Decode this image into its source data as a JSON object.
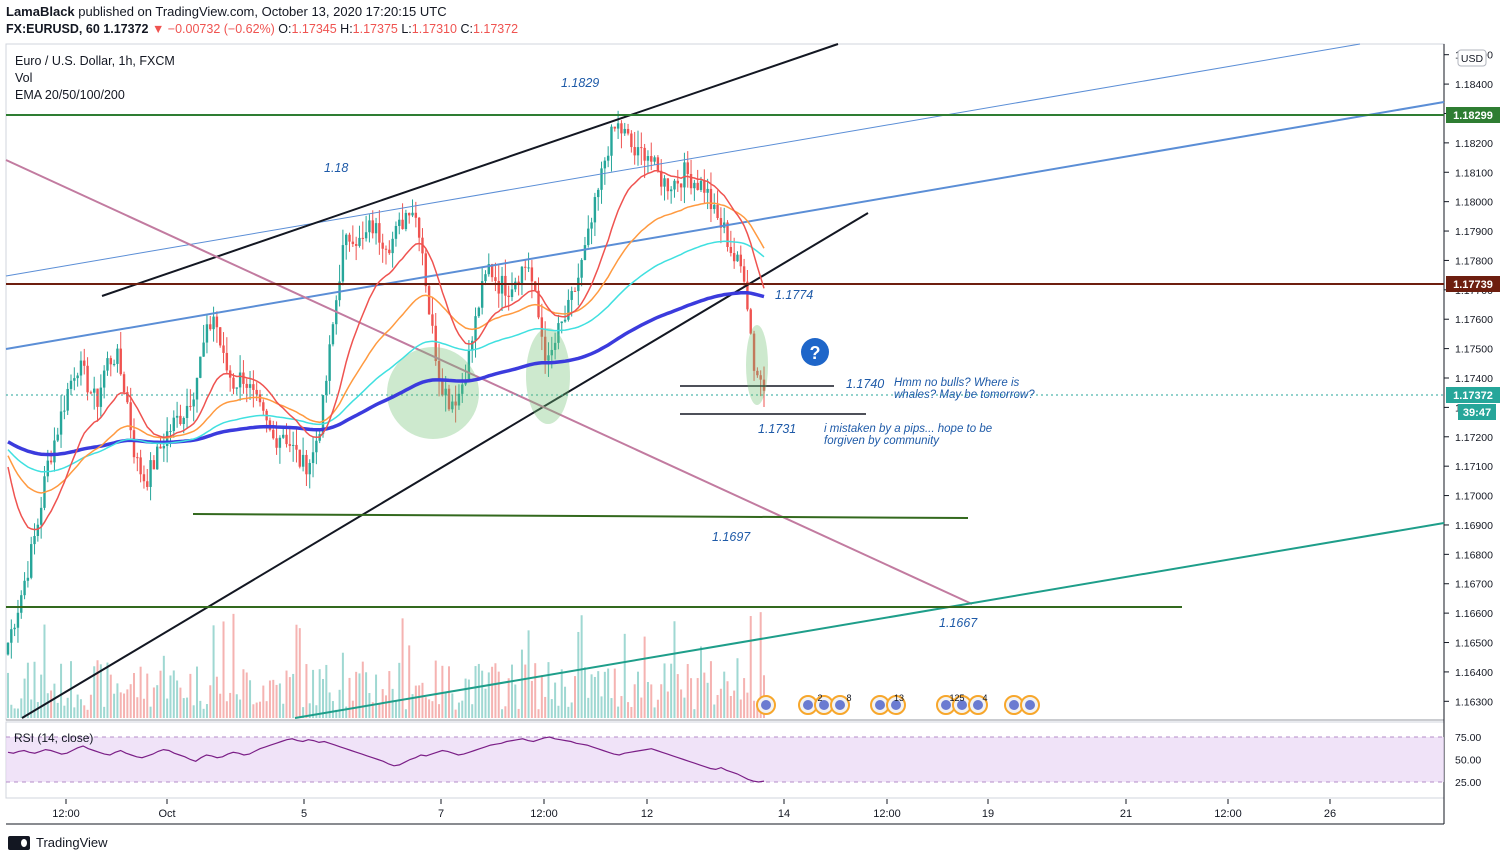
{
  "header": {
    "author": "LamaBlack",
    "published_text": "published on TradingView.com, October 13, 2020 17:20:15 UTC",
    "symbol": "FX:EURUSD, 60",
    "last": "1.17372",
    "change": "▼ −0.00732 (−0.62%)",
    "o_label": "O:",
    "o": "1.17345",
    "h_label": "H:",
    "h": "1.17375",
    "l_label": "L:",
    "l": "1.17310",
    "c_label": "C:",
    "c": "1.17372"
  },
  "legend": {
    "title": "Euro / U.S. Dollar, 1h, FXCM",
    "vol": "Vol",
    "ema": "EMA 20/50/100/200"
  },
  "rsi": {
    "label": "RSI (14, close)",
    "ticks": [
      "75.00",
      "50.00",
      "25.00"
    ],
    "values": [
      58,
      57,
      59,
      60,
      58,
      57,
      59,
      61,
      60,
      58,
      56,
      57,
      60,
      63,
      65,
      62,
      60,
      58,
      56,
      55,
      58,
      60,
      57,
      55,
      53,
      52,
      54,
      56,
      59,
      61,
      60,
      57,
      55,
      53,
      50,
      48,
      52,
      55,
      54,
      52,
      53,
      56,
      58,
      57,
      55,
      56,
      59,
      62,
      64,
      66,
      68,
      70,
      72,
      73,
      71,
      70,
      72,
      71,
      69,
      70,
      68,
      66,
      64,
      62,
      60,
      58,
      56,
      54,
      52,
      50,
      48,
      45,
      43,
      44,
      47,
      50,
      52,
      55,
      54,
      56,
      58,
      60,
      59,
      57,
      55,
      56,
      58,
      60,
      62,
      64,
      66,
      67,
      68,
      70,
      71,
      72,
      73,
      71,
      70,
      72,
      74,
      75,
      73,
      72,
      71,
      70,
      68,
      67,
      66,
      64,
      62,
      60,
      58,
      56,
      55,
      57,
      58,
      59,
      60,
      61,
      62,
      60,
      58,
      56,
      54,
      52,
      50,
      48,
      46,
      44,
      42,
      40,
      39,
      41,
      38,
      36,
      34,
      31,
      28,
      26,
      25,
      26
    ]
  },
  "price_axis": {
    "currency": "USD",
    "ticks": [
      "1.18500",
      "1.18400",
      "1.18300",
      "1.18200",
      "1.18100",
      "1.18000",
      "1.17900",
      "1.17800",
      "1.17700",
      "1.17600",
      "1.17500",
      "1.17400",
      "1.17300",
      "1.17200",
      "1.17100",
      "1.17000",
      "1.16900",
      "1.16800",
      "1.16700",
      "1.16600",
      "1.16500",
      "1.16400",
      "1.16300"
    ],
    "resistance_label": "1.18299",
    "level_label": "1.17739",
    "last_label": "1.17372",
    "countdown": "39:47"
  },
  "time_axis": {
    "ticks": [
      "12:00",
      "Oct",
      "5",
      "7",
      "12:00",
      "12",
      "14",
      "12:00",
      "19",
      "21",
      "12:00",
      "26"
    ]
  },
  "annotations": {
    "top": "1.1829",
    "mid": "1.18",
    "ema_level": "1.1774",
    "support_1740": "1.1740",
    "support_1731": "1.1731",
    "level_1697": "1.1697",
    "level_1667": "1.1667",
    "question": "?",
    "note1_line1": "Hmm no bulls? Where is",
    "note1_line2": "whales? May be tomorrow?",
    "note2_line1": "i mistaken by a pips... hope to be",
    "note2_line2": "forgiven by community"
  },
  "events": {
    "labels": [
      "2",
      "8",
      "13",
      "125",
      "4"
    ]
  },
  "footer": {
    "brand": "TradingView"
  },
  "colors": {
    "up": "#26a69a",
    "down": "#ef5350",
    "ema20": "#ef5350",
    "ema50": "#ff9a40",
    "ema100": "#40e0e0",
    "ema200": "#3b3bdd"
  },
  "chart_data": {
    "type": "candlestick",
    "symbol": "EURUSD",
    "timeframe": "1h",
    "ylim": [
      1.1625,
      1.1855
    ],
    "ohlc_last": {
      "open": 1.17345,
      "high": 1.17375,
      "low": 1.1731,
      "close": 1.17372
    },
    "close_path": [
      1.165,
      1.1662,
      1.1675,
      1.169,
      1.171,
      1.1722,
      1.1735,
      1.1745,
      1.1739,
      1.1731,
      1.1745,
      1.1748,
      1.1735,
      1.1712,
      1.1705,
      1.1712,
      1.172,
      1.1725,
      1.1729,
      1.1737,
      1.1752,
      1.1762,
      1.1745,
      1.1738,
      1.1741,
      1.1733,
      1.1726,
      1.1719,
      1.1722,
      1.1716,
      1.171,
      1.1713,
      1.1728,
      1.1755,
      1.1782,
      1.179,
      1.1785,
      1.1792,
      1.1788,
      1.1786,
      1.1792,
      1.18,
      1.179,
      1.176,
      1.174,
      1.1732,
      1.1735,
      1.1748,
      1.1766,
      1.1778,
      1.1772,
      1.1771,
      1.1776,
      1.1779,
      1.1761,
      1.1744,
      1.1755,
      1.1762,
      1.1773,
      1.1786,
      1.1801,
      1.1818,
      1.1826,
      1.1822,
      1.1815,
      1.1818,
      1.181,
      1.1806,
      1.1807,
      1.181,
      1.1807,
      1.1805,
      1.1795,
      1.179,
      1.178,
      1.1776,
      1.1744,
      1.1737
    ]
  }
}
